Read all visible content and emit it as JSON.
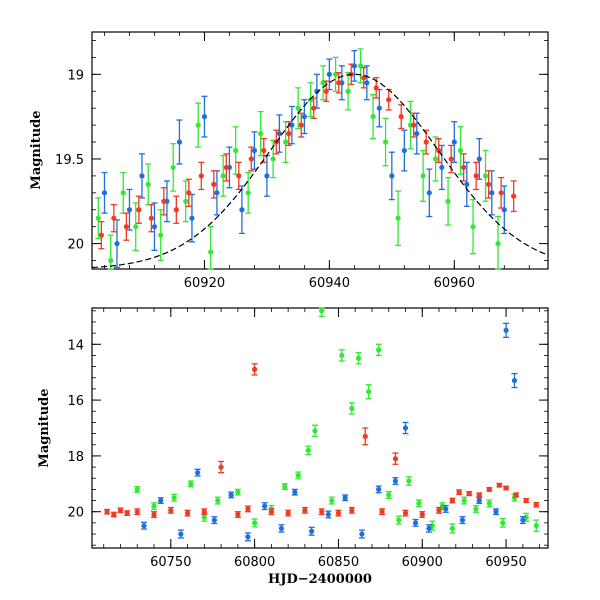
{
  "chart_data": [
    {
      "type": "scatter",
      "panel": "top",
      "title": "",
      "xlabel": "",
      "ylabel": "Magnitude",
      "xlim": [
        60902,
        60975
      ],
      "ylim": [
        20.15,
        18.75
      ],
      "y_inverted": true,
      "xticks": [
        60920,
        60940,
        60960
      ],
      "xtick_labels": [
        "60920",
        "60940",
        "60960"
      ],
      "yticks": [
        19,
        19.5,
        20
      ],
      "ytick_labels": [
        "19",
        "19.5",
        "20"
      ],
      "model_curve": {
        "type": "gaussian-dip",
        "peak_x": 60944,
        "peak_mag": 19.0,
        "baseline_mag": 20.15,
        "width": 13.5,
        "color": "#000000"
      },
      "series": [
        {
          "name": "green",
          "color": "#33e833",
          "x": [
            60903,
            60905,
            60907,
            60909,
            60911,
            60913,
            60915,
            60917,
            60919,
            60921,
            60923,
            60925,
            60927,
            60929,
            60931,
            60933,
            60935,
            60937,
            60939,
            60941,
            60943,
            60945,
            60947,
            60949,
            60951,
            60953,
            60955,
            60957,
            60959,
            60961,
            60963,
            60965,
            60967
          ],
          "y": [
            19.85,
            20.1,
            19.7,
            19.9,
            19.65,
            19.95,
            19.55,
            19.75,
            19.3,
            20.05,
            19.6,
            19.45,
            19.7,
            19.35,
            19.5,
            19.4,
            19.2,
            19.15,
            19.05,
            19.0,
            19.1,
            18.95,
            19.25,
            19.4,
            19.85,
            19.3,
            19.6,
            19.5,
            19.75,
            19.45,
            19.9,
            19.6,
            20.0
          ],
          "err": [
            0.12,
            0.15,
            0.12,
            0.14,
            0.12,
            0.15,
            0.14,
            0.12,
            0.13,
            0.15,
            0.12,
            0.14,
            0.12,
            0.13,
            0.11,
            0.12,
            0.12,
            0.1,
            0.1,
            0.1,
            0.11,
            0.1,
            0.13,
            0.14,
            0.16,
            0.14,
            0.15,
            0.13,
            0.14,
            0.14,
            0.16,
            0.15,
            0.16
          ]
        },
        {
          "name": "blue",
          "color": "#1e6fe0",
          "x": [
            60904,
            60906,
            60908,
            60910,
            60912,
            60914,
            60916,
            60918,
            60920,
            60922,
            60924,
            60926,
            60928,
            60930,
            60932,
            60934,
            60936,
            60938,
            60940,
            60942,
            60944,
            60946,
            60948,
            60950,
            60952,
            60954,
            60956,
            60958,
            60960,
            60962,
            60964,
            60966,
            60968
          ],
          "y": [
            19.7,
            20.0,
            19.8,
            19.6,
            19.9,
            19.75,
            19.4,
            19.85,
            19.25,
            19.7,
            19.55,
            19.8,
            19.45,
            19.6,
            19.35,
            19.3,
            19.25,
            19.1,
            19.0,
            19.05,
            18.95,
            19.05,
            19.2,
            19.6,
            19.45,
            19.35,
            19.7,
            19.55,
            19.4,
            19.65,
            19.5,
            19.7,
            19.8
          ],
          "err": [
            0.12,
            0.14,
            0.12,
            0.13,
            0.14,
            0.12,
            0.13,
            0.14,
            0.12,
            0.13,
            0.12,
            0.14,
            0.11,
            0.12,
            0.11,
            0.11,
            0.1,
            0.1,
            0.09,
            0.1,
            0.09,
            0.1,
            0.11,
            0.14,
            0.12,
            0.12,
            0.14,
            0.13,
            0.12,
            0.13,
            0.12,
            0.13,
            0.14
          ]
        },
        {
          "name": "red",
          "color": "#f23a22",
          "x": [
            60903.5,
            60905.5,
            60907.5,
            60909.5,
            60911.5,
            60913.5,
            60915.5,
            60917.5,
            60919.5,
            60921.5,
            60923.5,
            60925.5,
            60927.5,
            60929.5,
            60931.5,
            60933.5,
            60935.5,
            60937.5,
            60939.5,
            60941.5,
            60943.5,
            60945.5,
            60947.5,
            60949.5,
            60951.5,
            60953.5,
            60955.5,
            60957.5,
            60959.5,
            60961.5,
            60963.5,
            60965.5,
            60967.5,
            60969.5
          ],
          "y": [
            19.95,
            19.85,
            19.9,
            19.8,
            19.85,
            19.75,
            19.8,
            19.7,
            19.6,
            19.65,
            19.55,
            19.6,
            19.5,
            19.45,
            19.4,
            19.35,
            19.3,
            19.2,
            19.1,
            19.05,
            19.0,
            19.02,
            19.08,
            19.15,
            19.25,
            19.3,
            19.4,
            19.45,
            19.5,
            19.55,
            19.6,
            19.65,
            19.7,
            19.72
          ],
          "err": [
            0.08,
            0.08,
            0.08,
            0.08,
            0.08,
            0.08,
            0.08,
            0.08,
            0.08,
            0.08,
            0.08,
            0.08,
            0.07,
            0.07,
            0.07,
            0.07,
            0.07,
            0.06,
            0.06,
            0.06,
            0.06,
            0.06,
            0.06,
            0.06,
            0.07,
            0.07,
            0.07,
            0.07,
            0.08,
            0.08,
            0.08,
            0.08,
            0.09,
            0.09
          ]
        }
      ]
    },
    {
      "type": "scatter",
      "panel": "bottom",
      "title": "",
      "xlabel": "HJD−2400000",
      "ylabel": "Magnitude",
      "xlim": [
        60703,
        60975
      ],
      "ylim": [
        21.3,
        12.7
      ],
      "y_inverted": true,
      "xticks": [
        60750,
        60800,
        60850,
        60900,
        60950
      ],
      "xtick_labels": [
        "60750",
        "60800",
        "60850",
        "60900",
        "60950"
      ],
      "yticks": [
        14,
        16,
        18,
        20
      ],
      "ytick_labels": [
        "14",
        "16",
        "18",
        "20"
      ],
      "series": [
        {
          "name": "green",
          "color": "#33e833",
          "x": [
            60730,
            60740,
            60752,
            60762,
            60770,
            60778,
            60790,
            60800,
            60810,
            60818,
            60826,
            60832,
            60836,
            60840,
            60846,
            60852,
            60858,
            60862,
            60868,
            60874,
            60880,
            60886,
            60892,
            60898,
            60906,
            60912,
            60918,
            60925,
            60932,
            60940,
            60948,
            60955,
            60962,
            60968
          ],
          "y": [
            19.2,
            19.8,
            19.5,
            19.0,
            20.2,
            19.6,
            19.3,
            20.4,
            19.9,
            19.1,
            18.7,
            17.8,
            17.1,
            12.8,
            19.6,
            14.4,
            16.3,
            14.5,
            15.7,
            14.2,
            19.4,
            20.3,
            18.9,
            19.7,
            20.5,
            19.8,
            20.6,
            19.6,
            19.9,
            19.7,
            20.4,
            19.5,
            20.2,
            20.5
          ],
          "err": [
            0.1,
            0.12,
            0.12,
            0.1,
            0.14,
            0.12,
            0.1,
            0.14,
            0.12,
            0.1,
            0.12,
            0.15,
            0.2,
            0.2,
            0.12,
            0.2,
            0.2,
            0.2,
            0.25,
            0.2,
            0.12,
            0.14,
            0.15,
            0.12,
            0.16,
            0.12,
            0.16,
            0.12,
            0.12,
            0.12,
            0.15,
            0.12,
            0.14,
            0.2
          ]
        },
        {
          "name": "blue",
          "color": "#1e6fe0",
          "x": [
            60734,
            60744,
            60756,
            60766,
            60776,
            60786,
            60796,
            60806,
            60816,
            60824,
            60834,
            60844,
            60854,
            60864,
            60874,
            60884,
            60890,
            60896,
            60904,
            60914,
            60924,
            60934,
            60944,
            60950,
            60955,
            60960
          ],
          "y": [
            20.5,
            19.6,
            20.8,
            18.6,
            20.3,
            19.4,
            20.9,
            19.8,
            20.6,
            19.3,
            20.7,
            20.1,
            19.5,
            20.8,
            19.2,
            18.9,
            17.0,
            20.4,
            20.6,
            19.9,
            20.3,
            19.6,
            20.0,
            13.5,
            15.3,
            20.3
          ],
          "err": [
            0.12,
            0.1,
            0.14,
            0.12,
            0.12,
            0.1,
            0.14,
            0.12,
            0.13,
            0.1,
            0.14,
            0.12,
            0.1,
            0.14,
            0.12,
            0.12,
            0.2,
            0.12,
            0.13,
            0.12,
            0.12,
            0.1,
            0.1,
            0.25,
            0.25,
            0.12
          ]
        },
        {
          "name": "red",
          "color": "#f23a22",
          "x": [
            60712,
            60716,
            60720,
            60724,
            60730,
            60740,
            60750,
            60760,
            60770,
            60780,
            60790,
            60796,
            60800,
            60810,
            60820,
            60830,
            60840,
            60850,
            60858,
            60866,
            60876,
            60884,
            60890,
            60900,
            60910,
            60918,
            60922,
            60928,
            60934,
            60940,
            60946,
            60950,
            60956,
            60962,
            60968
          ],
          "y": [
            20.0,
            20.1,
            19.95,
            20.05,
            20.0,
            20.1,
            19.95,
            20.05,
            20.0,
            18.4,
            20.1,
            19.9,
            14.9,
            20.0,
            20.05,
            19.95,
            20.0,
            20.05,
            19.95,
            17.3,
            20.0,
            18.1,
            20.05,
            20.1,
            19.95,
            19.6,
            19.3,
            19.35,
            19.4,
            19.2,
            19.05,
            19.15,
            19.4,
            19.6,
            19.75
          ],
          "err": [
            0.08,
            0.08,
            0.08,
            0.08,
            0.1,
            0.1,
            0.1,
            0.1,
            0.1,
            0.2,
            0.1,
            0.1,
            0.2,
            0.1,
            0.1,
            0.1,
            0.1,
            0.1,
            0.1,
            0.3,
            0.1,
            0.2,
            0.1,
            0.1,
            0.1,
            0.08,
            0.08,
            0.07,
            0.07,
            0.06,
            0.06,
            0.06,
            0.07,
            0.07,
            0.08
          ]
        }
      ]
    }
  ]
}
